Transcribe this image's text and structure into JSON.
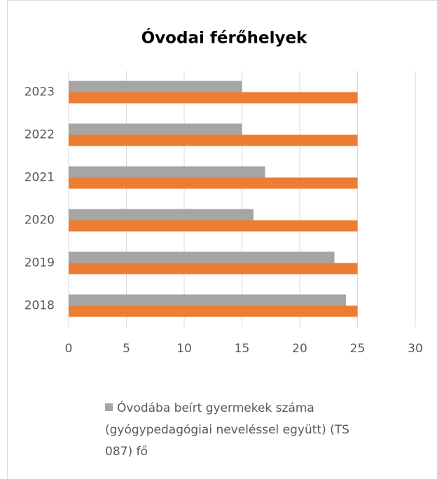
{
  "chart_data": {
    "type": "bar",
    "orientation": "horizontal",
    "title": "Óvodai férőhelyek",
    "categories": [
      "2018",
      "2019",
      "2020",
      "2021",
      "2022",
      "2023"
    ],
    "series": [
      {
        "name": "Óvodába beírt gyermekek száma (gyógypedagógiai neveléssel együtt) (TS 087) fő",
        "color": "#a5a5a5",
        "values": [
          24,
          23,
          16,
          17,
          15,
          15
        ]
      },
      {
        "color": "#ed7d31",
        "values": [
          25,
          25,
          25,
          25,
          25,
          25
        ]
      }
    ],
    "xlim": [
      0,
      30
    ],
    "xticks": [
      0,
      5,
      10,
      15,
      20,
      25,
      30
    ],
    "grid": true,
    "legend": "bottom"
  }
}
